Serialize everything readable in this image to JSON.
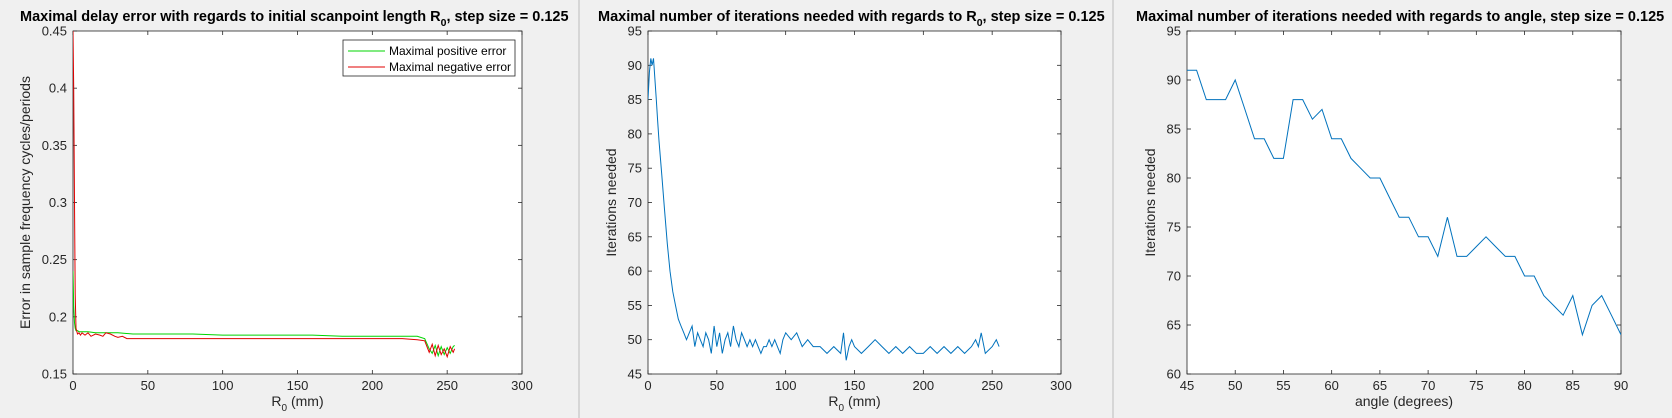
{
  "colors": {
    "background": "#f0f0f0",
    "axes_bg": "#ffffff",
    "axis_line": "#262626",
    "text": "#000000",
    "positive": "#00d400",
    "negative": "#e00000",
    "iterations": "#0072bd"
  },
  "chart_data": [
    {
      "type": "line",
      "title": "Maximal delay error with regards to initial scanpoint length R",
      "title_subscript": "0",
      "title_suffix": ", step size = 0.125",
      "xlabel": "R",
      "xlabel_subscript": "0",
      "xlabel_suffix": " (mm)",
      "ylabel": "Error in sample frequency cycles/periods",
      "xlim": [
        0,
        300
      ],
      "ylim": [
        0.15,
        0.45
      ],
      "xticks": [
        0,
        50,
        100,
        150,
        200,
        250,
        300
      ],
      "yticks": [
        0.15,
        0.2,
        0.25,
        0.3,
        0.35,
        0.4,
        0.45
      ],
      "grid": false,
      "legend_position": "top-right",
      "series": [
        {
          "name": "Maximal positive error",
          "color": "#00d400",
          "x": [
            0,
            0.5,
            1,
            1.5,
            2,
            3,
            4,
            6,
            8,
            10,
            15,
            20,
            30,
            40,
            60,
            80,
            100,
            120,
            140,
            160,
            180,
            200,
            220,
            230,
            235,
            238,
            240,
            242,
            244,
            246,
            248,
            250,
            252,
            254,
            255
          ],
          "y": [
            0.24,
            0.21,
            0.195,
            0.19,
            0.188,
            0.188,
            0.187,
            0.187,
            0.187,
            0.187,
            0.186,
            0.186,
            0.186,
            0.185,
            0.185,
            0.185,
            0.184,
            0.184,
            0.184,
            0.184,
            0.183,
            0.183,
            0.183,
            0.183,
            0.181,
            0.172,
            0.168,
            0.175,
            0.166,
            0.174,
            0.167,
            0.173,
            0.168,
            0.174,
            0.175
          ]
        },
        {
          "name": "Maximal negative error",
          "color": "#e00000",
          "x": [
            0,
            0.5,
            1,
            1.5,
            2,
            3,
            4,
            5,
            6,
            8,
            10,
            12,
            15,
            18,
            20,
            22,
            25,
            28,
            30,
            33,
            36,
            40,
            60,
            80,
            100,
            120,
            140,
            160,
            180,
            200,
            220,
            230,
            235,
            238,
            240,
            242,
            244,
            246,
            248,
            250,
            252,
            254,
            255
          ],
          "y": [
            0.45,
            0.4,
            0.3,
            0.22,
            0.19,
            0.185,
            0.186,
            0.184,
            0.186,
            0.184,
            0.186,
            0.183,
            0.185,
            0.184,
            0.183,
            0.186,
            0.185,
            0.183,
            0.182,
            0.183,
            0.181,
            0.181,
            0.181,
            0.181,
            0.181,
            0.181,
            0.181,
            0.181,
            0.181,
            0.181,
            0.181,
            0.18,
            0.179,
            0.169,
            0.176,
            0.166,
            0.175,
            0.167,
            0.172,
            0.165,
            0.174,
            0.169,
            0.172
          ]
        }
      ]
    },
    {
      "type": "line",
      "title": "Maximal number of iterations needed with regards to R",
      "title_subscript": "0",
      "title_suffix": ", step size = 0.125",
      "xlabel": "R",
      "xlabel_subscript": "0",
      "xlabel_suffix": " (mm)",
      "ylabel": "Iterations needed",
      "xlim": [
        0,
        300
      ],
      "ylim": [
        45,
        95
      ],
      "xticks": [
        0,
        50,
        100,
        150,
        200,
        250,
        300
      ],
      "yticks": [
        45,
        50,
        55,
        60,
        65,
        70,
        75,
        80,
        85,
        90,
        95
      ],
      "grid": false,
      "series": [
        {
          "color": "#0072bd",
          "x": [
            0,
            1,
            2,
            3,
            4,
            5,
            6,
            7,
            8,
            10,
            12,
            14,
            16,
            18,
            20,
            22,
            24,
            26,
            28,
            30,
            32,
            34,
            36,
            38,
            40,
            42,
            44,
            46,
            48,
            50,
            52,
            54,
            56,
            58,
            60,
            62,
            64,
            66,
            68,
            70,
            72,
            74,
            76,
            78,
            80,
            82,
            84,
            86,
            88,
            90,
            92,
            94,
            96,
            98,
            100,
            104,
            108,
            112,
            116,
            120,
            125,
            130,
            135,
            140,
            142,
            144,
            146,
            148,
            150,
            155,
            160,
            165,
            170,
            175,
            180,
            185,
            190,
            195,
            200,
            205,
            210,
            215,
            220,
            225,
            230,
            235,
            238,
            240,
            242,
            245,
            250,
            253,
            255
          ],
          "y": [
            85,
            89,
            91,
            90,
            91,
            88,
            85,
            82,
            79,
            74,
            69,
            64,
            60,
            57,
            55,
            53,
            52,
            51,
            50,
            51,
            52,
            49,
            51,
            50,
            49,
            51,
            50,
            48,
            52,
            49,
            51,
            48,
            50,
            51,
            49,
            52,
            50,
            49,
            51,
            50,
            49,
            50,
            49,
            50,
            49,
            48,
            49,
            49,
            50,
            49,
            50,
            49,
            48,
            50,
            51,
            50,
            51,
            49,
            50,
            49,
            49,
            48,
            49,
            48,
            51,
            47,
            49,
            50,
            49,
            48,
            49,
            50,
            49,
            48,
            49,
            48,
            49,
            48,
            48,
            49,
            48,
            49,
            48,
            49,
            48,
            49,
            50,
            49,
            51,
            48,
            49,
            50,
            49
          ]
        }
      ]
    },
    {
      "type": "line",
      "title": "Maximal number of iterations needed with regards to angle, step size = 0.125",
      "xlabel": "angle (degrees)",
      "ylabel": "Iterations needed",
      "xlim": [
        45,
        90
      ],
      "ylim": [
        60,
        95
      ],
      "xticks": [
        45,
        50,
        55,
        60,
        65,
        70,
        75,
        80,
        85,
        90
      ],
      "yticks": [
        60,
        65,
        70,
        75,
        80,
        85,
        90,
        95
      ],
      "grid": false,
      "series": [
        {
          "color": "#0072bd",
          "x": [
            45,
            46,
            47,
            48,
            49,
            50,
            51,
            52,
            53,
            54,
            55,
            56,
            57,
            58,
            59,
            60,
            61,
            62,
            63,
            64,
            65,
            66,
            67,
            68,
            69,
            70,
            71,
            72,
            73,
            74,
            75,
            76,
            77,
            78,
            79,
            80,
            81,
            82,
            83,
            84,
            85,
            86,
            87,
            88,
            89,
            90
          ],
          "y": [
            91,
            91,
            88,
            88,
            88,
            90,
            87,
            84,
            84,
            82,
            82,
            88,
            88,
            86,
            87,
            84,
            84,
            82,
            81,
            80,
            80,
            78,
            76,
            76,
            74,
            74,
            72,
            76,
            72,
            72,
            73,
            74,
            73,
            72,
            72,
            70,
            70,
            68,
            67,
            66,
            68,
            64,
            67,
            68,
            66,
            64
          ]
        }
      ]
    }
  ]
}
